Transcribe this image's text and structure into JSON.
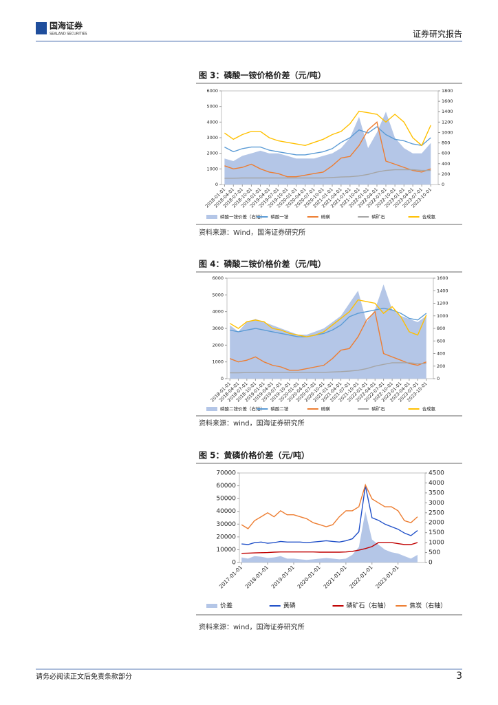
{
  "header": {
    "logo": "国海证券",
    "logo_en": "SEALAND SECURITIES",
    "report_type": "证券研究报告"
  },
  "footer": {
    "disclaimer": "请务必阅读正文后免责条款部分",
    "page": "3"
  },
  "chart_data": [
    {
      "type": "line",
      "title": "图 3：磷酸一铵价格价差（元/吨）",
      "source": "资料来源：Wind，国海证券研究所",
      "x": [
        "2018-01-01",
        "2018-04-01",
        "2018-07-01",
        "2018-10-01",
        "2019-01-01",
        "2019-04-01",
        "2019-07-01",
        "2019-10-01",
        "2020-01-01",
        "2020-04-01",
        "2020-07-01",
        "2020-10-01",
        "2021-01-01",
        "2021-04-01",
        "2021-07-01",
        "2021-10-01",
        "2022-01-01",
        "2022-04-01",
        "2022-07-01",
        "2022-10-01",
        "2023-01-01",
        "2023-04-01",
        "2023-07-01",
        "2023-10-01"
      ],
      "xlim": [
        "2017-12-01",
        "2023-12-15"
      ],
      "ylim": [
        0,
        6000
      ],
      "yticks": [
        0,
        1000,
        2000,
        3000,
        4000,
        5000,
        6000
      ],
      "y2lim": [
        0,
        1800
      ],
      "y2ticks": [
        0,
        200,
        400,
        600,
        800,
        1000,
        1200,
        1400,
        1600,
        1800
      ],
      "series": [
        {
          "name": "磷酸一铵价差（右轴）",
          "kind": "area",
          "axis": "y2",
          "color": "#b4c6e7",
          "values": [
            500,
            450,
            550,
            600,
            650,
            600,
            600,
            550,
            500,
            500,
            500,
            550,
            600,
            700,
            900,
            1300,
            700,
            1000,
            1400,
            900,
            700,
            600,
            600,
            800
          ]
        },
        {
          "name": "磷酸一铵",
          "color": "#5b9bd5",
          "values": [
            2400,
            2100,
            2300,
            2400,
            2400,
            2200,
            2100,
            2000,
            1900,
            1900,
            2000,
            2100,
            2300,
            2700,
            3000,
            3500,
            3300,
            3700,
            3200,
            2900,
            2800,
            2600,
            2500,
            3000
          ]
        },
        {
          "name": "硫磺",
          "color": "#ed7d31",
          "values": [
            1200,
            1000,
            1100,
            1300,
            1000,
            800,
            700,
            500,
            500,
            600,
            700,
            800,
            1200,
            1700,
            1800,
            2500,
            3500,
            4000,
            1500,
            1300,
            1100,
            900,
            800,
            1000
          ]
        },
        {
          "name": "磷矿石",
          "color": "#a5a5a5",
          "values": [
            400,
            400,
            420,
            420,
            420,
            420,
            420,
            420,
            420,
            420,
            420,
            420,
            450,
            480,
            500,
            550,
            650,
            800,
            900,
            950,
            950,
            950,
            900,
            900
          ]
        },
        {
          "name": "合成氨",
          "color": "#ffc000",
          "values": [
            3300,
            2900,
            3200,
            3400,
            3400,
            3000,
            2800,
            2700,
            2600,
            2500,
            2700,
            2900,
            3200,
            3400,
            3900,
            4700,
            4600,
            4500,
            4000,
            4500,
            4000,
            3000,
            2500,
            3800
          ]
        }
      ]
    },
    {
      "type": "line",
      "title": "图 4：磷酸二铵价格价差（元/吨）",
      "source": "资料来源：wind，国海证券研究所",
      "x": [
        "2018-01-01",
        "2018-04-01",
        "2018-07-01",
        "2018-10-01",
        "2019-01-01",
        "2019-04-01",
        "2019-07-01",
        "2019-10-01",
        "2020-01-01",
        "2020-04-01",
        "2020-07-01",
        "2020-10-01",
        "2021-01-01",
        "2021-04-01",
        "2021-07-01",
        "2021-10-01",
        "2022-01-01",
        "2022-04-01",
        "2022-07-01",
        "2022-10-01",
        "2023-01-01",
        "2023-04-01",
        "2023-07-01",
        "2023-10-01"
      ],
      "xlim": [
        "2017-12-01",
        "2023-12-15"
      ],
      "ylim": [
        0,
        6000
      ],
      "yticks": [
        0,
        1000,
        2000,
        3000,
        4000,
        5000,
        6000
      ],
      "y2lim": [
        0,
        1600
      ],
      "y2ticks": [
        0,
        200,
        400,
        600,
        800,
        1000,
        1200,
        1400,
        1600
      ],
      "series": [
        {
          "name": "磷酸二铵价差（右轴）",
          "kind": "area",
          "axis": "y2",
          "color": "#b4c6e7",
          "values": [
            850,
            750,
            900,
            950,
            900,
            850,
            800,
            750,
            700,
            700,
            750,
            800,
            900,
            1000,
            1200,
            1400,
            900,
            1100,
            1500,
            1100,
            1000,
            950,
            900,
            1000
          ]
        },
        {
          "name": "磷酸二铵",
          "color": "#5b9bd5",
          "values": [
            2900,
            2800,
            2900,
            3000,
            2900,
            2800,
            2700,
            2600,
            2500,
            2500,
            2600,
            2700,
            2900,
            3200,
            3700,
            3900,
            4000,
            4100,
            4200,
            4100,
            3900,
            3600,
            3500,
            3900
          ]
        },
        {
          "name": "硫磺",
          "color": "#ed7d31",
          "values": [
            1200,
            1000,
            1100,
            1300,
            1000,
            800,
            700,
            500,
            500,
            600,
            700,
            800,
            1200,
            1700,
            1800,
            2500,
            3500,
            4000,
            1500,
            1300,
            1100,
            900,
            800,
            1000
          ]
        },
        {
          "name": "磷矿石",
          "color": "#a5a5a5",
          "values": [
            350,
            350,
            360,
            380,
            380,
            380,
            380,
            380,
            380,
            380,
            380,
            380,
            400,
            420,
            450,
            500,
            600,
            750,
            850,
            950,
            950,
            950,
            900,
            900
          ]
        },
        {
          "name": "合成氨",
          "color": "#ffc000",
          "values": [
            3300,
            3000,
            3400,
            3500,
            3400,
            3000,
            2900,
            2700,
            2600,
            2500,
            2600,
            2800,
            3200,
            3600,
            4000,
            4700,
            4600,
            4500,
            3900,
            4300,
            3700,
            2800,
            2600,
            3800
          ]
        }
      ]
    },
    {
      "type": "line",
      "title": "图 5：黄磷价格价差（元/吨）",
      "source": "资料来源：wind，国海证券研究所",
      "x": [
        "2017-01-01",
        "2017-04-01",
        "2017-07-01",
        "2017-10-01",
        "2018-01-01",
        "2018-04-01",
        "2018-07-01",
        "2018-10-01",
        "2019-01-01",
        "2019-04-01",
        "2019-07-01",
        "2019-10-01",
        "2020-01-01",
        "2020-04-01",
        "2020-07-01",
        "2020-10-01",
        "2021-01-01",
        "2021-04-01",
        "2021-07-01",
        "2021-10-01",
        "2022-01-01",
        "2022-04-01",
        "2022-07-01",
        "2022-10-01",
        "2023-01-01",
        "2023-04-01",
        "2023-07-01",
        "2023-10-01"
      ],
      "xticks": [
        "2017-01-01",
        "2018-01-01",
        "2019-01-01",
        "2020-01-01",
        "2021-01-01",
        "2022-01-01",
        "2023-01-01"
      ],
      "xlim": [
        "2016-12-01",
        "2024-01-15"
      ],
      "ylim": [
        0,
        70000
      ],
      "yticks": [
        0,
        10000,
        20000,
        30000,
        40000,
        50000,
        60000,
        70000
      ],
      "y2lim": [
        0,
        4500
      ],
      "y2ticks": [
        0,
        500,
        1000,
        1500,
        2000,
        2500,
        3000,
        3500,
        4000,
        4500
      ],
      "series": [
        {
          "name": "价差",
          "kind": "area",
          "color": "#b4c6e7",
          "values": [
            4000,
            3000,
            5000,
            4500,
            3500,
            4000,
            5000,
            3000,
            3000,
            2500,
            2000,
            2500,
            3000,
            3500,
            3000,
            2500,
            3000,
            6000,
            12000,
            40000,
            18000,
            14000,
            10000,
            8000,
            7000,
            5000,
            3000,
            6000
          ]
        },
        {
          "name": "黄磷",
          "color": "#1f4fc8",
          "values": [
            14500,
            14000,
            15500,
            16000,
            15000,
            15500,
            16500,
            16000,
            16000,
            16000,
            15500,
            16000,
            16500,
            17000,
            16500,
            16000,
            17000,
            18500,
            24000,
            60000,
            35000,
            33000,
            30000,
            28000,
            26000,
            23000,
            21000,
            25000
          ]
        },
        {
          "name": "磷矿石（右轴）",
          "axis": "y2",
          "color": "#c00000",
          "values": [
            460,
            470,
            480,
            490,
            500,
            520,
            530,
            530,
            530,
            530,
            530,
            530,
            520,
            520,
            520,
            520,
            530,
            560,
            620,
            700,
            800,
            1000,
            1000,
            1000,
            950,
            900,
            900,
            1000
          ]
        },
        {
          "name": "焦炭（右轴）",
          "axis": "y2",
          "color": "#ed7d31",
          "values": [
            1900,
            1700,
            2100,
            2300,
            2500,
            2300,
            2600,
            2400,
            2400,
            2300,
            2200,
            2000,
            1900,
            1800,
            1900,
            2300,
            2600,
            2600,
            2800,
            3900,
            3200,
            3000,
            2800,
            2800,
            2600,
            2100,
            2000,
            2300
          ]
        }
      ]
    }
  ]
}
